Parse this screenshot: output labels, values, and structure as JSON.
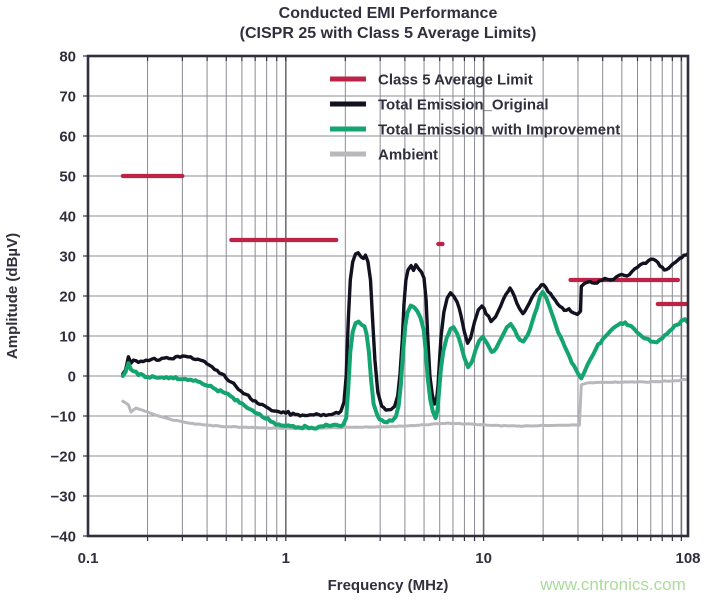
{
  "watermark": "www.cntronics.com",
  "colors": {
    "text": "#2f2f3e",
    "frame": "#2f2f3e",
    "grid": "#8b8b94",
    "grid_major": "#6e6e79",
    "watermark": "#abdb9b"
  },
  "chart_data": {
    "type": "line",
    "title_line1": "Conducted EMI Performance",
    "title_line2": "(CISPR 25 with Class 5 Average Limits)",
    "xlabel": "Frequency (MHz)",
    "ylabel": "Amplitude (dBµV)",
    "x_scale": "log",
    "x_range": [
      0.1,
      108
    ],
    "y_range": [
      -40,
      80
    ],
    "grid": true,
    "legend_position": "top-center-inside",
    "x_ticks": [
      {
        "label": "0.1",
        "value": 0.1
      },
      {
        "label": "1",
        "value": 1
      },
      {
        "label": "10",
        "value": 10
      },
      {
        "label": "108",
        "value": 108
      }
    ],
    "y_ticks": [
      {
        "label": "80",
        "value": 80
      },
      {
        "label": "70",
        "value": 70
      },
      {
        "label": "60",
        "value": 60
      },
      {
        "label": "50",
        "value": 50
      },
      {
        "label": "40",
        "value": 40
      },
      {
        "label": "30",
        "value": 30
      },
      {
        "label": "20",
        "value": 20
      },
      {
        "label": "10",
        "value": 10
      },
      {
        "label": "0",
        "value": 0
      },
      {
        "label": "−10",
        "value": -10
      },
      {
        "label": "−20",
        "value": -20
      },
      {
        "label": "−30",
        "value": -30
      },
      {
        "label": "−40",
        "value": -40
      }
    ],
    "legend_order": [
      "limit",
      "original",
      "improved",
      "ambient"
    ],
    "plot_order": [
      "limit",
      "ambient",
      "original",
      "improved"
    ],
    "series": {
      "limit": {
        "label": "Class 5 Average Limit",
        "color": "#bd2347",
        "width": 4.2,
        "jitter": 0,
        "seed": 1,
        "segments": [
          [
            [
              0.15,
              50
            ],
            [
              0.3,
              50
            ]
          ],
          [
            [
              0.53,
              34
            ],
            [
              1.8,
              34
            ]
          ],
          [
            [
              5.9,
              33
            ],
            [
              6.2,
              33
            ]
          ],
          [
            [
              27.5,
              24
            ],
            [
              96,
              24
            ]
          ],
          [
            [
              76,
              18
            ],
            [
              106,
              18
            ]
          ]
        ]
      },
      "original": {
        "label": "Total Emission_Original",
        "color": "#111120",
        "width": 3.4,
        "jitter": 0.5,
        "seed": 7,
        "points": [
          [
            0.15,
            0.5
          ],
          [
            0.155,
            1.5
          ],
          [
            0.16,
            4.8
          ],
          [
            0.165,
            3.2
          ],
          [
            0.175,
            3.8
          ],
          [
            0.19,
            3.6
          ],
          [
            0.21,
            4.2
          ],
          [
            0.23,
            4.0
          ],
          [
            0.25,
            4.6
          ],
          [
            0.27,
            4.3
          ],
          [
            0.3,
            5.0
          ],
          [
            0.33,
            4.8
          ],
          [
            0.36,
            4.2
          ],
          [
            0.4,
            3.0
          ],
          [
            0.45,
            1.4
          ],
          [
            0.5,
            -0.6
          ],
          [
            0.56,
            -2.6
          ],
          [
            0.63,
            -4.6
          ],
          [
            0.7,
            -6.2
          ],
          [
            0.8,
            -7.8
          ],
          [
            0.9,
            -8.8
          ],
          [
            1.0,
            -9.3
          ],
          [
            1.15,
            -9.6
          ],
          [
            1.35,
            -9.7
          ],
          [
            1.55,
            -9.6
          ],
          [
            1.75,
            -9.4
          ],
          [
            1.9,
            -8.8
          ],
          [
            1.97,
            -6.5
          ],
          [
            2.02,
            0
          ],
          [
            2.07,
            14
          ],
          [
            2.12,
            24
          ],
          [
            2.18,
            28.5
          ],
          [
            2.25,
            30.5
          ],
          [
            2.32,
            30.8
          ],
          [
            2.4,
            29.8
          ],
          [
            2.47,
            29.4
          ],
          [
            2.53,
            30.2
          ],
          [
            2.6,
            28.6
          ],
          [
            2.68,
            24
          ],
          [
            2.74,
            15
          ],
          [
            2.82,
            4
          ],
          [
            2.92,
            -4
          ],
          [
            3.05,
            -7.5
          ],
          [
            3.2,
            -8.5
          ],
          [
            3.4,
            -8.4
          ],
          [
            3.55,
            -7.6
          ],
          [
            3.68,
            -5
          ],
          [
            3.78,
            0.5
          ],
          [
            3.88,
            9
          ],
          [
            3.96,
            18
          ],
          [
            4.05,
            24
          ],
          [
            4.15,
            26.5
          ],
          [
            4.3,
            27.6
          ],
          [
            4.42,
            26.4
          ],
          [
            4.55,
            27.8
          ],
          [
            4.7,
            26.8
          ],
          [
            4.85,
            26.0
          ],
          [
            5.0,
            24.5
          ],
          [
            5.12,
            19
          ],
          [
            5.22,
            10
          ],
          [
            5.35,
            0
          ],
          [
            5.5,
            -4.5
          ],
          [
            5.65,
            -7
          ],
          [
            5.78,
            -6
          ],
          [
            5.88,
            -2.5
          ],
          [
            5.97,
            3
          ],
          [
            6.1,
            10
          ],
          [
            6.3,
            16
          ],
          [
            6.55,
            19.5
          ],
          [
            6.8,
            20.8
          ],
          [
            7.05,
            20
          ],
          [
            7.35,
            18.5
          ],
          [
            7.7,
            15
          ],
          [
            8.0,
            11
          ],
          [
            8.3,
            8.2
          ],
          [
            8.6,
            9.5
          ],
          [
            9.0,
            13.5
          ],
          [
            9.4,
            16.5
          ],
          [
            9.8,
            17.5
          ],
          [
            10.3,
            15.5
          ],
          [
            10.9,
            13.6
          ],
          [
            11.5,
            14.8
          ],
          [
            12.2,
            17.5
          ],
          [
            13.0,
            20.5
          ],
          [
            13.6,
            22
          ],
          [
            14.3,
            20
          ],
          [
            15.2,
            16.8
          ],
          [
            15.8,
            15.6
          ],
          [
            16.6,
            17.2
          ],
          [
            17.5,
            19.5
          ],
          [
            18.6,
            21.5
          ],
          [
            19.6,
            22.8
          ],
          [
            20.6,
            22.2
          ],
          [
            21.8,
            20.6
          ],
          [
            23.0,
            19
          ],
          [
            24.3,
            17.4
          ],
          [
            25.6,
            16.4
          ],
          [
            27.0,
            16.8
          ],
          [
            28.4,
            15.8
          ],
          [
            29.8,
            15.4
          ],
          [
            30.9,
            16.2
          ],
          [
            31.2,
            22.4
          ],
          [
            32.5,
            23.2
          ],
          [
            34.5,
            23.6
          ],
          [
            36.5,
            23.2
          ],
          [
            38.5,
            23.8
          ],
          [
            41,
            24.4
          ],
          [
            44,
            24.0
          ],
          [
            47,
            24.8
          ],
          [
            50,
            25.4
          ],
          [
            53,
            25.0
          ],
          [
            56,
            26.0
          ],
          [
            60,
            27.2
          ],
          [
            64,
            28.2
          ],
          [
            68,
            28.8
          ],
          [
            72,
            29.2
          ],
          [
            76,
            28.4
          ],
          [
            80,
            27.2
          ],
          [
            84,
            26.6
          ],
          [
            88,
            27.4
          ],
          [
            93,
            28.4
          ],
          [
            98,
            29.4
          ],
          [
            103,
            30.2
          ],
          [
            108,
            30.6
          ]
        ]
      },
      "improved": {
        "label": "Total Emission_with Improvement",
        "color": "#14a470",
        "width": 4,
        "jitter": 0.45,
        "seed": 13,
        "points": [
          [
            0.15,
            0.0
          ],
          [
            0.155,
            1.0
          ],
          [
            0.16,
            3.2
          ],
          [
            0.165,
            1.6
          ],
          [
            0.18,
            0.2
          ],
          [
            0.2,
            -0.2
          ],
          [
            0.23,
            -0.4
          ],
          [
            0.27,
            -0.6
          ],
          [
            0.3,
            -0.8
          ],
          [
            0.34,
            -1.2
          ],
          [
            0.38,
            -2.0
          ],
          [
            0.43,
            -3.0
          ],
          [
            0.48,
            -4.0
          ],
          [
            0.54,
            -5.4
          ],
          [
            0.6,
            -6.8
          ],
          [
            0.68,
            -8.6
          ],
          [
            0.76,
            -10.2
          ],
          [
            0.84,
            -11.4
          ],
          [
            0.92,
            -12.1
          ],
          [
            1.0,
            -12.5
          ],
          [
            1.15,
            -12.8
          ],
          [
            1.35,
            -12.9
          ],
          [
            1.55,
            -12.6
          ],
          [
            1.7,
            -12.4
          ],
          [
            1.85,
            -12.4
          ],
          [
            1.95,
            -12.2
          ],
          [
            2.02,
            -10.5
          ],
          [
            2.07,
            -3
          ],
          [
            2.12,
            6
          ],
          [
            2.18,
            11
          ],
          [
            2.25,
            13.2
          ],
          [
            2.33,
            13.6
          ],
          [
            2.42,
            12.8
          ],
          [
            2.5,
            12.4
          ],
          [
            2.56,
            10.6
          ],
          [
            2.63,
            6
          ],
          [
            2.7,
            -1
          ],
          [
            2.78,
            -7
          ],
          [
            2.9,
            -9.8
          ],
          [
            3.05,
            -11
          ],
          [
            3.25,
            -11.6
          ],
          [
            3.45,
            -11.2
          ],
          [
            3.6,
            -10.2
          ],
          [
            3.72,
            -7.5
          ],
          [
            3.82,
            -2
          ],
          [
            3.92,
            6
          ],
          [
            4.02,
            12.5
          ],
          [
            4.12,
            15.8
          ],
          [
            4.28,
            17.6
          ],
          [
            4.45,
            17.2
          ],
          [
            4.62,
            16.2
          ],
          [
            4.8,
            14.6
          ],
          [
            4.98,
            11.5
          ],
          [
            5.1,
            6
          ],
          [
            5.22,
            -0.5
          ],
          [
            5.38,
            -6
          ],
          [
            5.55,
            -9
          ],
          [
            5.72,
            -10.5
          ],
          [
            5.85,
            -8.5
          ],
          [
            5.95,
            -4
          ],
          [
            6.08,
            1.5
          ],
          [
            6.25,
            6
          ],
          [
            6.5,
            9.5
          ],
          [
            6.8,
            11.8
          ],
          [
            7.05,
            12.2
          ],
          [
            7.35,
            10.6
          ],
          [
            7.7,
            7.6
          ],
          [
            8.0,
            4.5
          ],
          [
            8.35,
            2.2
          ],
          [
            8.7,
            3.4
          ],
          [
            9.1,
            6.5
          ],
          [
            9.5,
            8.8
          ],
          [
            9.9,
            9.8
          ],
          [
            10.4,
            8.2
          ],
          [
            11.0,
            6.0
          ],
          [
            11.6,
            7.0
          ],
          [
            12.3,
            9.5
          ],
          [
            13.1,
            12.2
          ],
          [
            13.7,
            13.0
          ],
          [
            14.4,
            11.4
          ],
          [
            15.3,
            9.0
          ],
          [
            15.9,
            8.6
          ],
          [
            16.7,
            10.2
          ],
          [
            17.6,
            13.5
          ],
          [
            18.6,
            17.0
          ],
          [
            19.3,
            20.0
          ],
          [
            19.9,
            21.0
          ],
          [
            20.8,
            19.4
          ],
          [
            22.0,
            16.0
          ],
          [
            23.2,
            12.6
          ],
          [
            24.5,
            9.8
          ],
          [
            25.8,
            7.2
          ],
          [
            27.2,
            4.8
          ],
          [
            28.6,
            2.6
          ],
          [
            30.0,
            0.6
          ],
          [
            31.2,
            -0.6
          ],
          [
            32.5,
            1.2
          ],
          [
            34.5,
            4.0
          ],
          [
            37,
            6.8
          ],
          [
            40,
            9.2
          ],
          [
            44,
            11.4
          ],
          [
            48,
            12.8
          ],
          [
            52,
            13.4
          ],
          [
            56,
            12.4
          ],
          [
            60,
            10.8
          ],
          [
            65,
            9.4
          ],
          [
            70,
            8.6
          ],
          [
            75,
            8.4
          ],
          [
            80,
            9.4
          ],
          [
            85,
            10.6
          ],
          [
            90,
            11.8
          ],
          [
            95,
            12.8
          ],
          [
            100,
            13.8
          ],
          [
            104,
            14.2
          ],
          [
            108,
            13.4
          ]
        ]
      },
      "ambient": {
        "label": "Ambient",
        "color": "#b8b8bc",
        "width": 3,
        "jitter": 0.12,
        "seed": 21,
        "points": [
          [
            0.15,
            -6.3
          ],
          [
            0.16,
            -7.2
          ],
          [
            0.165,
            -9.0
          ],
          [
            0.175,
            -8.0
          ],
          [
            0.19,
            -8.6
          ],
          [
            0.22,
            -9.8
          ],
          [
            0.26,
            -10.8
          ],
          [
            0.31,
            -11.6
          ],
          [
            0.38,
            -12.2
          ],
          [
            0.47,
            -12.6
          ],
          [
            0.6,
            -12.8
          ],
          [
            0.8,
            -13.0
          ],
          [
            1.1,
            -13.1
          ],
          [
            1.6,
            -13.0
          ],
          [
            2.2,
            -12.8
          ],
          [
            3.0,
            -12.7
          ],
          [
            4.0,
            -12.5
          ],
          [
            5.0,
            -12.2
          ],
          [
            6.0,
            -11.9
          ],
          [
            7.0,
            -11.8
          ],
          [
            8.0,
            -12.0
          ],
          [
            9.5,
            -12.2
          ],
          [
            12,
            -12.4
          ],
          [
            16,
            -12.5
          ],
          [
            21,
            -12.4
          ],
          [
            26,
            -12.3
          ],
          [
            30.5,
            -12.3
          ],
          [
            31.2,
            -2.2
          ],
          [
            33,
            -1.8
          ],
          [
            38,
            -1.6
          ],
          [
            45,
            -1.6
          ],
          [
            55,
            -1.5
          ],
          [
            65,
            -1.5
          ],
          [
            75,
            -1.4
          ],
          [
            85,
            -1.3
          ],
          [
            93,
            -1.2
          ],
          [
            100,
            -1.0
          ],
          [
            108,
            -0.7
          ]
        ]
      }
    }
  }
}
